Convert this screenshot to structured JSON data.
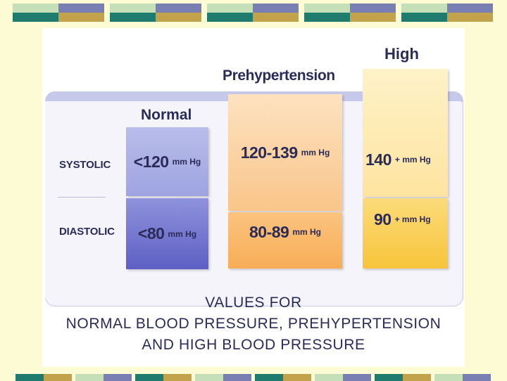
{
  "table": {
    "row_labels": [
      "SYSTOLIC",
      "DIASTOLIC"
    ],
    "columns": [
      {
        "heading": "Normal",
        "systolic": {
          "value": "<120",
          "unit": "mm Hg"
        },
        "diastolic": {
          "value": "<80",
          "unit": "mm Hg"
        }
      },
      {
        "heading": "Prehypertension",
        "systolic": {
          "value": "120-139",
          "unit": "mm Hg"
        },
        "diastolic": {
          "value": "80-89",
          "unit": "mm Hg"
        }
      },
      {
        "heading": "High",
        "systolic": {
          "value": "140",
          "unit": "+ mm Hg"
        },
        "diastolic": {
          "value": "90",
          "unit": "+ mm Hg"
        }
      }
    ]
  },
  "caption": {
    "line1": "VALUES FOR",
    "line2": "NORMAL BLOOD PRESSURE, PREHYPERTENSION",
    "line3": "AND HIGH BLOOD PRESSURE"
  },
  "colors": {
    "background": "#fdfbd3",
    "text": "#2b2b5a",
    "normal_top": "#a9aee6",
    "normal_bottom": "#6667c9",
    "prehypertension_top": "#fcd9b0",
    "prehypertension_bottom": "#f8b25f",
    "high_top": "#fdecb0",
    "high_bottom": "#f7c63d",
    "deco_teal": "#1f7b6e",
    "deco_mint": "#c5dfb8",
    "deco_purple": "#7a7fb3",
    "deco_gold": "#c2a24a"
  }
}
